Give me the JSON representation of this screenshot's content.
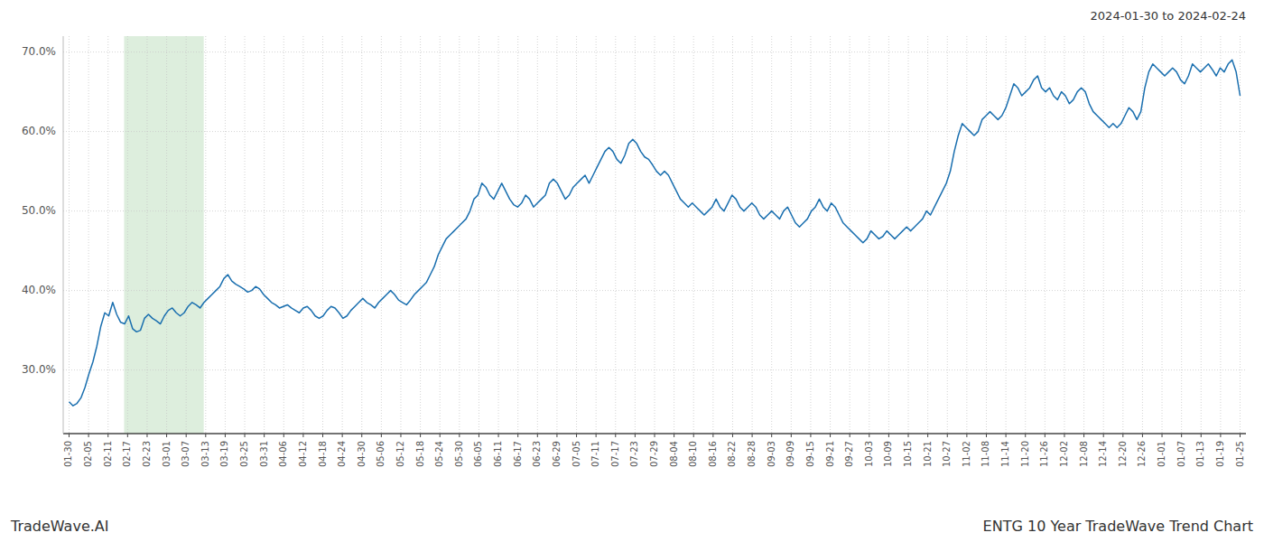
{
  "chart_data": {
    "type": "line",
    "title": "2024-01-30 to 2024-02-24",
    "annotations": [
      "TradeWave.AI",
      "ENTG 10 Year TradeWave Trend Chart"
    ],
    "color": "#1a6faf",
    "grid": true,
    "xlim": [
      -0.3,
      60.3
    ],
    "xticks": [
      {
        "value": 0,
        "label": "01-30"
      },
      {
        "value": 1,
        "label": "02-05"
      },
      {
        "value": 2,
        "label": "02-11"
      },
      {
        "value": 3,
        "label": "02-17"
      },
      {
        "value": 4,
        "label": "02-23"
      },
      {
        "value": 5,
        "label": "03-01"
      },
      {
        "value": 6,
        "label": "03-07"
      },
      {
        "value": 7,
        "label": "03-13"
      },
      {
        "value": 8,
        "label": "03-19"
      },
      {
        "value": 9,
        "label": "03-25"
      },
      {
        "value": 10,
        "label": "03-31"
      },
      {
        "value": 11,
        "label": "04-06"
      },
      {
        "value": 12,
        "label": "04-12"
      },
      {
        "value": 13,
        "label": "04-18"
      },
      {
        "value": 14,
        "label": "04-24"
      },
      {
        "value": 15,
        "label": "04-30"
      },
      {
        "value": 16,
        "label": "05-06"
      },
      {
        "value": 17,
        "label": "05-12"
      },
      {
        "value": 18,
        "label": "05-18"
      },
      {
        "value": 19,
        "label": "05-24"
      },
      {
        "value": 20,
        "label": "05-30"
      },
      {
        "value": 21,
        "label": "06-05"
      },
      {
        "value": 22,
        "label": "06-11"
      },
      {
        "value": 23,
        "label": "06-17"
      },
      {
        "value": 24,
        "label": "06-23"
      },
      {
        "value": 25,
        "label": "06-29"
      },
      {
        "value": 26,
        "label": "07-05"
      },
      {
        "value": 27,
        "label": "07-11"
      },
      {
        "value": 28,
        "label": "07-17"
      },
      {
        "value": 29,
        "label": "07-23"
      },
      {
        "value": 30,
        "label": "07-29"
      },
      {
        "value": 31,
        "label": "08-04"
      },
      {
        "value": 32,
        "label": "08-10"
      },
      {
        "value": 33,
        "label": "08-16"
      },
      {
        "value": 34,
        "label": "08-22"
      },
      {
        "value": 35,
        "label": "08-28"
      },
      {
        "value": 36,
        "label": "09-03"
      },
      {
        "value": 37,
        "label": "09-09"
      },
      {
        "value": 38,
        "label": "09-15"
      },
      {
        "value": 39,
        "label": "09-21"
      },
      {
        "value": 40,
        "label": "09-27"
      },
      {
        "value": 41,
        "label": "10-03"
      },
      {
        "value": 42,
        "label": "10-09"
      },
      {
        "value": 43,
        "label": "10-15"
      },
      {
        "value": 44,
        "label": "10-21"
      },
      {
        "value": 45,
        "label": "10-27"
      },
      {
        "value": 46,
        "label": "11-02"
      },
      {
        "value": 47,
        "label": "11-08"
      },
      {
        "value": 48,
        "label": "11-14"
      },
      {
        "value": 49,
        "label": "11-20"
      },
      {
        "value": 50,
        "label": "11-26"
      },
      {
        "value": 51,
        "label": "12-02"
      },
      {
        "value": 52,
        "label": "12-08"
      },
      {
        "value": 53,
        "label": "12-14"
      },
      {
        "value": 54,
        "label": "12-20"
      },
      {
        "value": 55,
        "label": "12-26"
      },
      {
        "value": 56,
        "label": "01-01"
      },
      {
        "value": 57,
        "label": "01-07"
      },
      {
        "value": 58,
        "label": "01-13"
      },
      {
        "value": 59,
        "label": "01-19"
      },
      {
        "value": 60,
        "label": "01-25"
      }
    ],
    "ylim": [
      22,
      72
    ],
    "yticks": [
      {
        "value": 30,
        "label": "30.0%"
      },
      {
        "value": 40,
        "label": "40.0%"
      },
      {
        "value": 50,
        "label": "50.0%"
      },
      {
        "value": 60,
        "label": "60.0%"
      },
      {
        "value": 70,
        "label": "70.0%"
      }
    ],
    "shaded_region": {
      "from": 2.82,
      "to": 6.9,
      "color": "#ddeedd"
    },
    "values": [
      26.0,
      25.5,
      25.8,
      26.5,
      27.8,
      29.5,
      31.0,
      33.0,
      35.5,
      37.2,
      36.8,
      38.5,
      37.0,
      36.0,
      35.8,
      36.8,
      35.2,
      34.8,
      35.0,
      36.5,
      37.0,
      36.5,
      36.2,
      35.8,
      36.8,
      37.5,
      37.8,
      37.2,
      36.8,
      37.2,
      38.0,
      38.5,
      38.2,
      37.8,
      38.5,
      39.0,
      39.5,
      40.0,
      40.5,
      41.5,
      42.0,
      41.2,
      40.8,
      40.5,
      40.2,
      39.8,
      40.0,
      40.5,
      40.2,
      39.5,
      39.0,
      38.5,
      38.2,
      37.8,
      38.0,
      38.2,
      37.8,
      37.5,
      37.2,
      37.8,
      38.0,
      37.5,
      36.8,
      36.5,
      36.8,
      37.5,
      38.0,
      37.8,
      37.2,
      36.5,
      36.8,
      37.5,
      38.0,
      38.5,
      39.0,
      38.5,
      38.2,
      37.8,
      38.5,
      39.0,
      39.5,
      40.0,
      39.5,
      38.8,
      38.5,
      38.2,
      38.8,
      39.5,
      40.0,
      40.5,
      41.0,
      42.0,
      43.0,
      44.5,
      45.5,
      46.5,
      47.0,
      47.5,
      48.0,
      48.5,
      49.0,
      50.0,
      51.5,
      52.0,
      53.5,
      53.0,
      52.0,
      51.5,
      52.5,
      53.5,
      52.5,
      51.5,
      50.8,
      50.5,
      51.0,
      52.0,
      51.5,
      50.5,
      51.0,
      51.5,
      52.0,
      53.5,
      54.0,
      53.5,
      52.5,
      51.5,
      52.0,
      53.0,
      53.5,
      54.0,
      54.5,
      53.5,
      54.5,
      55.5,
      56.5,
      57.5,
      58.0,
      57.5,
      56.5,
      56.0,
      57.0,
      58.5,
      59.0,
      58.5,
      57.5,
      56.8,
      56.5,
      55.8,
      55.0,
      54.5,
      55.0,
      54.5,
      53.5,
      52.5,
      51.5,
      51.0,
      50.5,
      51.0,
      50.5,
      50.0,
      49.5,
      50.0,
      50.5,
      51.5,
      50.5,
      50.0,
      51.0,
      52.0,
      51.5,
      50.5,
      50.0,
      50.5,
      51.0,
      50.5,
      49.5,
      49.0,
      49.5,
      50.0,
      49.5,
      49.0,
      50.0,
      50.5,
      49.5,
      48.5,
      48.0,
      48.5,
      49.0,
      50.0,
      50.5,
      51.5,
      50.5,
      50.0,
      51.0,
      50.5,
      49.5,
      48.5,
      48.0,
      47.5,
      47.0,
      46.5,
      46.0,
      46.5,
      47.5,
      47.0,
      46.5,
      46.8,
      47.5,
      47.0,
      46.5,
      47.0,
      47.5,
      48.0,
      47.5,
      48.0,
      48.5,
      49.0,
      50.0,
      49.5,
      50.5,
      51.5,
      52.5,
      53.5,
      55.0,
      57.5,
      59.5,
      61.0,
      60.5,
      60.0,
      59.5,
      60.0,
      61.5,
      62.0,
      62.5,
      62.0,
      61.5,
      62.0,
      63.0,
      64.5,
      66.0,
      65.5,
      64.5,
      65.0,
      65.5,
      66.5,
      67.0,
      65.5,
      65.0,
      65.5,
      64.5,
      64.0,
      65.0,
      64.5,
      63.5,
      64.0,
      65.0,
      65.5,
      65.0,
      63.5,
      62.5,
      62.0,
      61.5,
      61.0,
      60.5,
      61.0,
      60.5,
      61.0,
      62.0,
      63.0,
      62.5,
      61.5,
      62.5,
      65.5,
      67.5,
      68.5,
      68.0,
      67.5,
      67.0,
      67.5,
      68.0,
      67.5,
      66.5,
      66.0,
      67.0,
      68.5,
      68.0,
      67.5,
      68.0,
      68.5,
      67.8,
      67.0,
      68.0,
      67.5,
      68.5,
      69.0,
      67.5,
      64.5
    ]
  }
}
